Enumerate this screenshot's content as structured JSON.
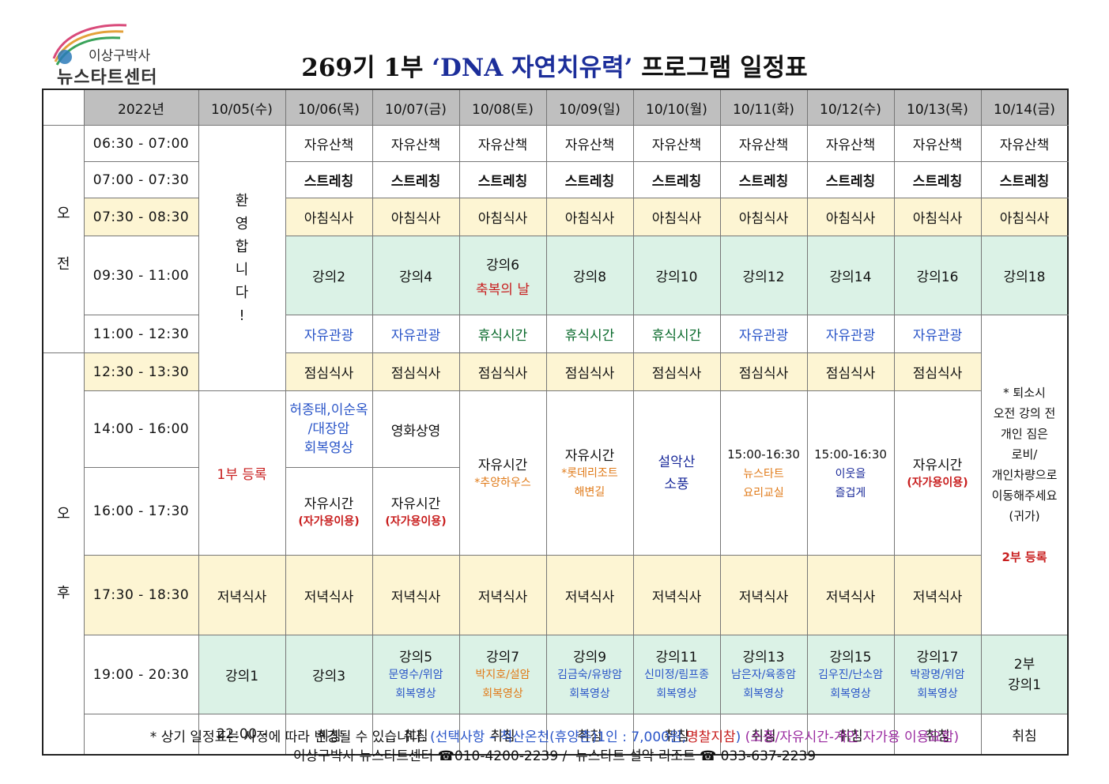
{
  "logo": {
    "line1": "이상구박사",
    "line2": "뉴스타트센터"
  },
  "title": {
    "prefix": "269기 1부 ",
    "quoted": "‘DNA 자연치유력’",
    "suffix": " 프로그램 일정표"
  },
  "header": {
    "year": "2022년",
    "dates": [
      "10/05(수)",
      "10/06(목)",
      "10/07(금)",
      "10/08(토)",
      "10/09(일)",
      "10/10(월)",
      "10/11(화)",
      "10/12(수)",
      "10/13(목)",
      "10/14(금)"
    ]
  },
  "periods": {
    "am": [
      "오",
      "전"
    ],
    "pm": [
      "오",
      "후"
    ]
  },
  "times": [
    "06:30 - 07:00",
    "07:00 - 07:30",
    "07:30 - 08:30",
    "09:30 - 11:00",
    "11:00 - 12:30",
    "12:30 - 13:30",
    "14:00 - 16:00",
    "16:00 - 17:30",
    "17:30 - 18:30",
    "19:00 - 20:30",
    "22:00 -"
  ],
  "welcome": [
    "환",
    "영",
    "합",
    "니",
    "다",
    "!"
  ],
  "register1": "1부 등록",
  "walk": "자유산책",
  "stretch": "스트레칭",
  "breakfast": "아침식사",
  "lectures_am": [
    "강의2",
    "강의4",
    "강의6",
    "강의8",
    "강의10",
    "강의12",
    "강의14",
    "강의16",
    "강의18"
  ],
  "blessing_day": "축복의 날",
  "row11": [
    "자유관광",
    "자유관광",
    "휴식시간",
    "휴식시간",
    "휴식시간",
    "자유관광",
    "자유관광",
    "자유관광"
  ],
  "checkout_note": [
    "* 퇴소시",
    "오전 강의 전",
    "개인 짐은",
    "로비/",
    "개인차량으로",
    "이동해주세요",
    "(귀가)"
  ],
  "register2": "2부 등록",
  "lunch": "점심식사",
  "c_1006_a": [
    "허종태,이순옥",
    "/대장암",
    "회복영상"
  ],
  "c_1007_a": "영화상영",
  "free_time": "자유시간",
  "self_car": "(자가용이용)",
  "c_1008": "*추양하우스",
  "c_1009": [
    "*롯데리조트",
    "해변길"
  ],
  "c_1010": [
    "설악산",
    "소풍"
  ],
  "c_1011": [
    "15:00-16:30",
    "뉴스타트",
    "요리교실"
  ],
  "c_1012": [
    "15:00-16:30",
    "이웃을",
    "즐겁게"
  ],
  "dinner": "저녁식사",
  "evening": [
    {
      "title": "강의1"
    },
    {
      "title": "강의3"
    },
    {
      "title": "강의5",
      "l1": "문영수/위암",
      "l2": "회복영상"
    },
    {
      "title": "강의7",
      "l1": "박지호/설암",
      "l2": "회복영상"
    },
    {
      "title": "강의9",
      "l1": "김금숙/유방암",
      "l2": "회복영상"
    },
    {
      "title": "강의11",
      "l1": "신미정/림프종",
      "l2": "회복영상"
    },
    {
      "title": "강의13",
      "l1": "남은자/육종암",
      "l2": "회복영상"
    },
    {
      "title": "강의15",
      "l1": "김우진/난소암",
      "l2": "회복영상"
    },
    {
      "title": "강의17",
      "l1": "박광명/위암",
      "l2": "회복영상"
    }
  ],
  "part2_lecture": [
    "2부",
    "강의1"
  ],
  "sleep": "취침",
  "footer": {
    "note": "* 상기 일정표는 사정에 따라 변경될 수 있습니다.",
    "option1": "(선택사항 – 척산온천(휴양촌)1인 : 7,000원,",
    "option2": "명찰지참",
    "option3": ")",
    "option4": "(소풍/자유시간-개인 자가용 이용요함)",
    "contact1": "이상구박사 뉴스타트센터",
    "phone1": "☎010-4200-2239 /",
    "contact2": "뉴스타트 설악 리조트",
    "phone2": "☎ 033-637-2239"
  },
  "colors": {
    "header": "#bfbfbf",
    "meal": "#fdf5d3",
    "lecture": "#dbf2e6",
    "title_quote": "#1c2e9a",
    "red": "#c81e1e",
    "blue": "#2a55c8"
  }
}
